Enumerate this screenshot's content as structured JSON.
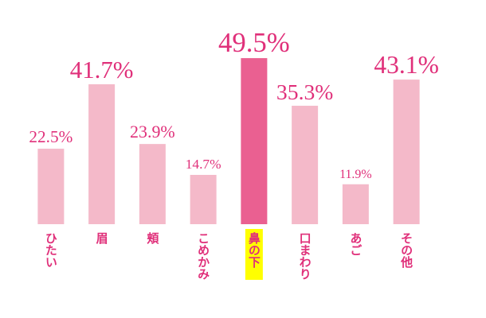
{
  "chart_data": {
    "type": "bar",
    "categories": [
      "ひたい",
      "眉",
      "頬",
      "こめかみ",
      "鼻の下",
      "口まわり",
      "あご",
      "その他"
    ],
    "values": [
      22.5,
      41.7,
      23.9,
      14.7,
      49.5,
      35.3,
      11.9,
      43.1
    ],
    "value_labels": [
      "22.5%",
      "41.7%",
      "23.9%",
      "14.7%",
      "49.5%",
      "35.3%",
      "11.9%",
      "43.1%"
    ],
    "color": "#f4b9c9",
    "highlight": 4,
    "highlight_color": "#ea6091",
    "label_color": "#e0307a",
    "ylim": [
      0,
      50
    ]
  }
}
